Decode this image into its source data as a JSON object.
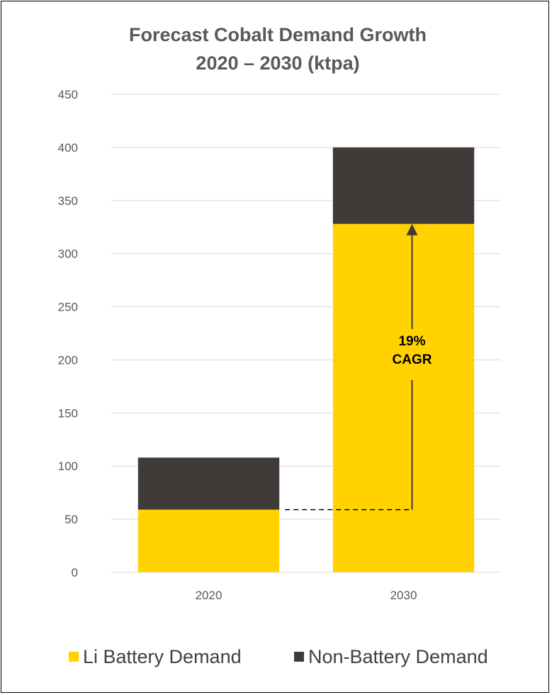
{
  "chart_data": {
    "type": "bar",
    "stacked": true,
    "title_lines": [
      "Forecast Cobalt Demand Growth",
      "2020 – 2030 (ktpa)"
    ],
    "categories": [
      "2020",
      "2030"
    ],
    "series": [
      {
        "name": "Li Battery Demand",
        "values": [
          59,
          328
        ],
        "color": "#FFD200"
      },
      {
        "name": "Non-Battery Demand",
        "values": [
          49,
          72
        ],
        "color": "#403A38"
      }
    ],
    "ylim": [
      0,
      450
    ],
    "yticks": [
      0,
      50,
      100,
      150,
      200,
      250,
      300,
      350,
      400,
      450
    ],
    "grid": true,
    "legend_position": "bottom",
    "annotation": {
      "lines": [
        "19%",
        "CAGR"
      ],
      "from_value": 59,
      "to_value": 328
    }
  }
}
